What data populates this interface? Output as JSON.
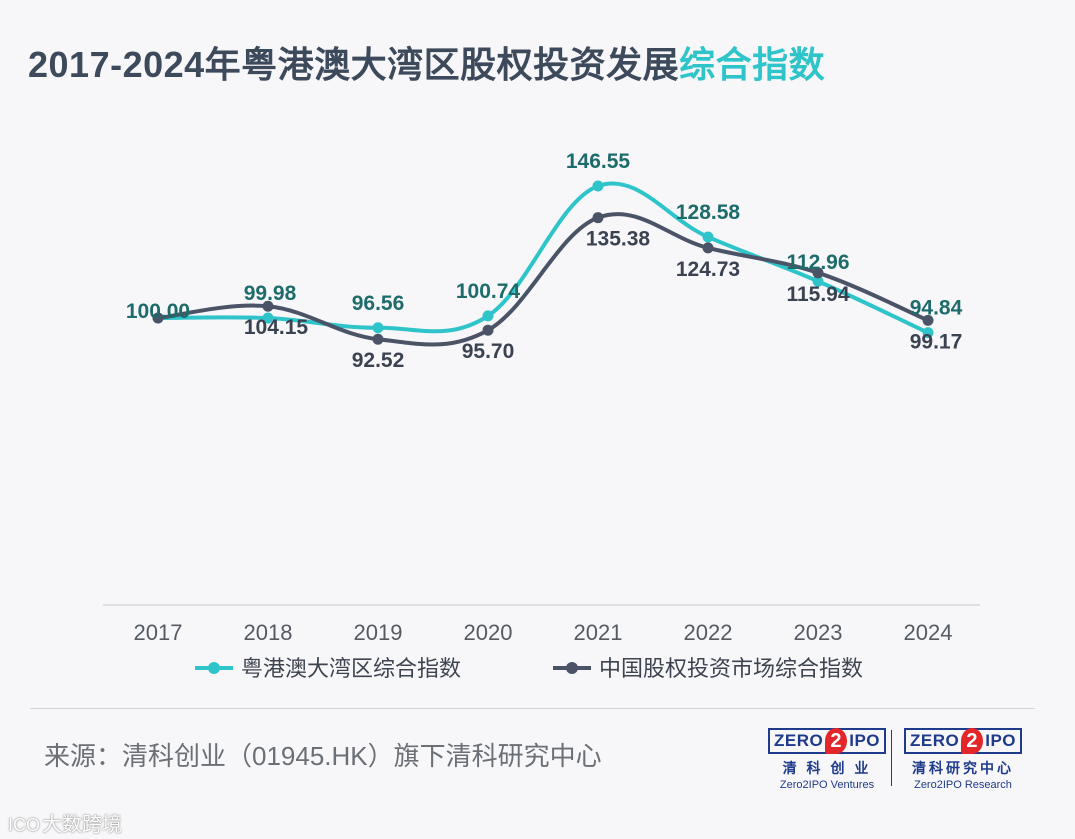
{
  "title": {
    "main": "2017-2024年粤港澳大湾区股权投资发展",
    "highlight": "综合指数"
  },
  "colors": {
    "series_a": "#2fc4c9",
    "series_b": "#4a5466",
    "label_a": "#1e6b6b",
    "label_b": "#3b4252"
  },
  "chart_data": {
    "type": "line",
    "categories": [
      "2017",
      "2018",
      "2019",
      "2020",
      "2021",
      "2022",
      "2023",
      "2024"
    ],
    "series": [
      {
        "name": "粤港澳大湾区综合指数",
        "values": [
          100.0,
          99.98,
          96.56,
          100.74,
          146.55,
          128.58,
          112.96,
          94.84
        ],
        "labels": [
          "100.00",
          "99.98",
          "96.56",
          "100.74",
          "146.55",
          "128.58",
          "112.96",
          "94.84"
        ]
      },
      {
        "name": "中国股权投资市场综合指数",
        "values": [
          100.0,
          104.15,
          92.52,
          95.7,
          135.38,
          124.73,
          115.94,
          99.17
        ],
        "labels": [
          "",
          "104.15",
          "92.52",
          "95.70",
          "135.38",
          "124.73",
          "115.94",
          "99.17"
        ]
      }
    ],
    "legend_position": "bottom",
    "grid": false
  },
  "source": "来源：清科创业（01945.HK）旗下清科研究中心",
  "logos": [
    {
      "mark_left": "ZERO",
      "mark_two": "2",
      "mark_right": "IPO",
      "cn": "清 科 创 业",
      "en": "Zero2IPO Ventures"
    },
    {
      "mark_left": "ZERO",
      "mark_two": "2",
      "mark_right": "IPO",
      "cn": "清科研究中心",
      "en": "Zero2IPO Research"
    }
  ],
  "watermark": {
    "icon": "ICO",
    "text": "大数跨境"
  }
}
